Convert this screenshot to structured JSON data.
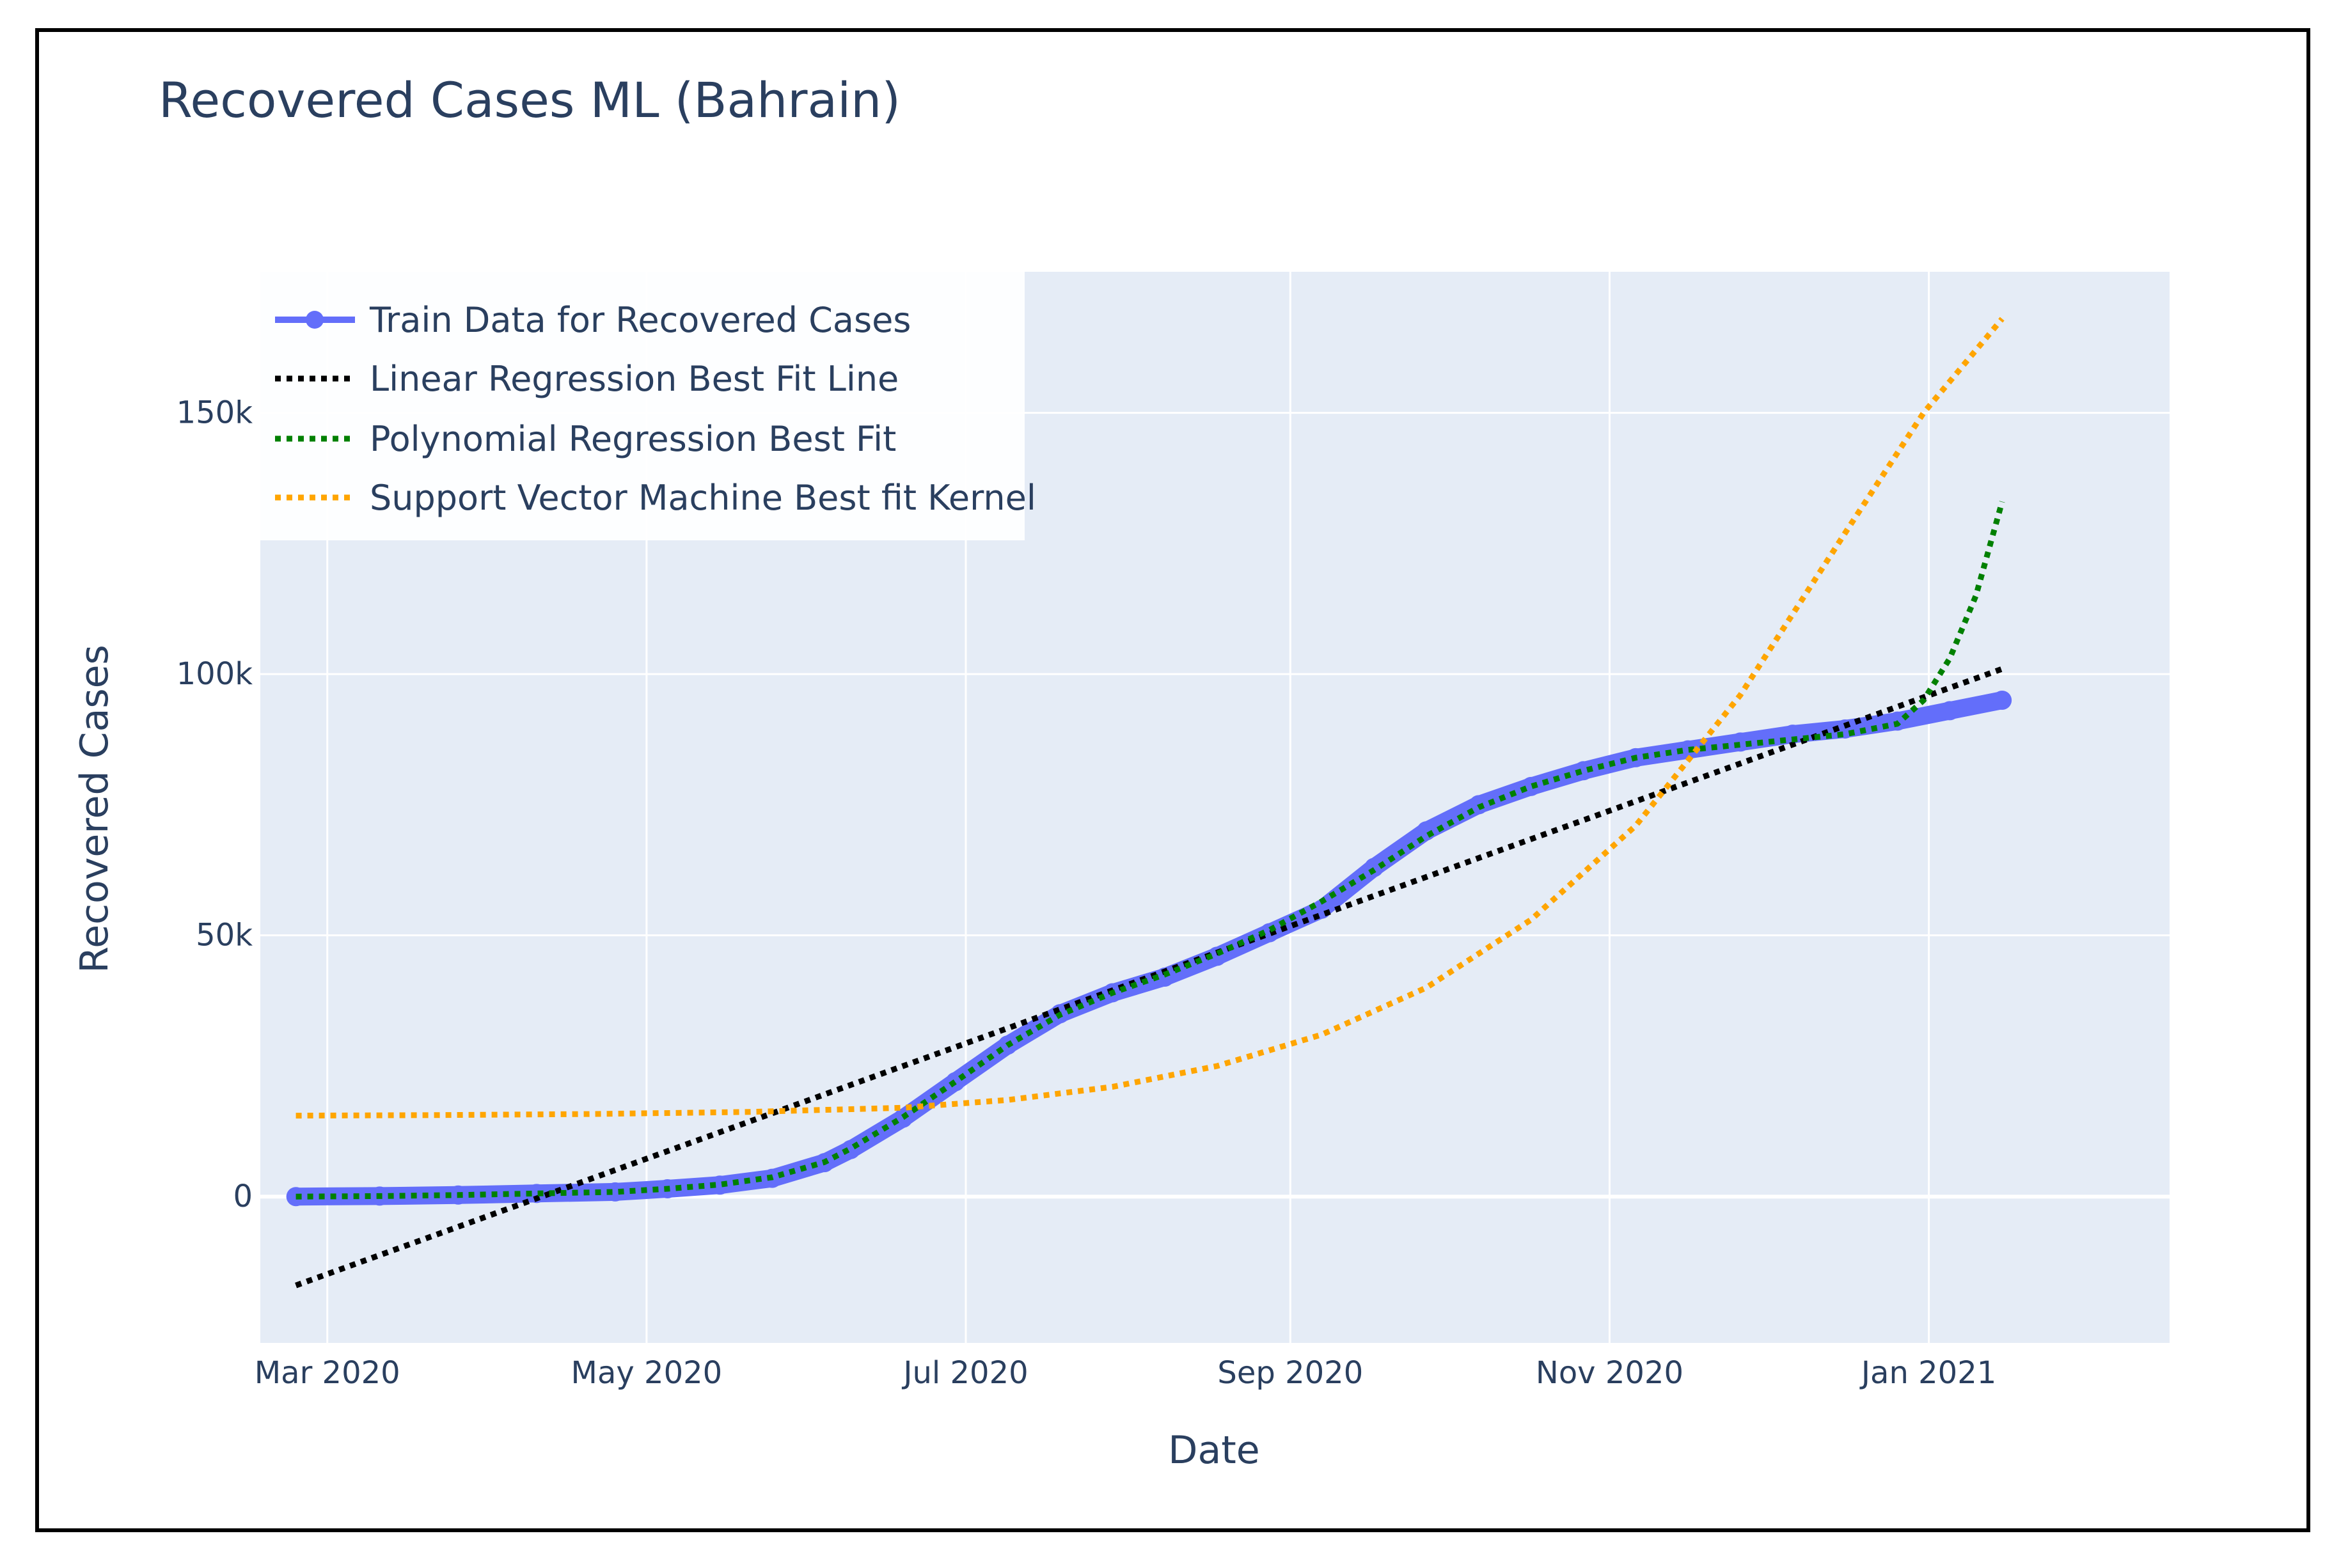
{
  "chart_data": {
    "type": "line",
    "title": "Recovered Cases ML (Bahrain)",
    "xlabel": "Date",
    "ylabel": "Recovered Cases",
    "x_unit": "days since 2020-03-01",
    "xlim": [
      -12.8,
      352
    ],
    "ylim": [
      -28000,
      177000
    ],
    "x_ticks": [
      {
        "label": "Mar 2020",
        "day": 0
      },
      {
        "label": "May 2020",
        "day": 61
      },
      {
        "label": "Jul 2020",
        "day": 122
      },
      {
        "label": "Sep 2020",
        "day": 184
      },
      {
        "label": "Nov 2020",
        "day": 245
      },
      {
        "label": "Jan 2021",
        "day": 306
      }
    ],
    "y_ticks": [
      {
        "label": "0",
        "value": 0
      },
      {
        "label": "50k",
        "value": 50000
      },
      {
        "label": "100k",
        "value": 100000
      },
      {
        "label": "150k",
        "value": 150000
      }
    ],
    "grid": true,
    "legend_position": "top-left",
    "series": [
      {
        "name": "Train Data for Recovered Cases",
        "color": "#636efa",
        "style": "line+markers",
        "x": [
          -6,
          10,
          25,
          40,
          55,
          65,
          75,
          85,
          95,
          100,
          110,
          120,
          130,
          140,
          150,
          160,
          170,
          180,
          190,
          200,
          210,
          220,
          230,
          240,
          250,
          260,
          270,
          280,
          290,
          300,
          310,
          320
        ],
        "y": [
          0,
          100,
          300,
          600,
          900,
          1500,
          2200,
          3500,
          6500,
          9000,
          15000,
          22000,
          29000,
          35000,
          39000,
          42000,
          46000,
          50500,
          55000,
          63000,
          70000,
          75000,
          78500,
          81500,
          84000,
          85500,
          87000,
          88500,
          89500,
          91000,
          93000,
          95000
        ]
      },
      {
        "name": "Linear Regression Best Fit Line",
        "color": "#000000",
        "style": "dot",
        "x": [
          -6,
          320
        ],
        "y": [
          -17000,
          101000
        ]
      },
      {
        "name": "Polynomial Regression Best Fit",
        "color": "#008000",
        "style": "dot",
        "x": [
          -6,
          10,
          25,
          40,
          55,
          65,
          75,
          85,
          95,
          100,
          110,
          120,
          130,
          140,
          150,
          160,
          170,
          180,
          190,
          200,
          210,
          220,
          230,
          240,
          250,
          260,
          270,
          280,
          290,
          300,
          305,
          310,
          315,
          320
        ],
        "y": [
          0,
          100,
          300,
          600,
          900,
          1500,
          2300,
          3700,
          6600,
          9200,
          15200,
          22000,
          29000,
          34800,
          39000,
          42500,
          46500,
          51000,
          56500,
          62500,
          69000,
          74500,
          78500,
          81500,
          84000,
          85500,
          86500,
          87500,
          88500,
          90500,
          95000,
          103000,
          115000,
          133000
        ]
      },
      {
        "name": "Support Vector Machine Best fit Kernel",
        "color": "#ffa500",
        "style": "dot",
        "x": [
          -6,
          20,
          50,
          80,
          110,
          130,
          150,
          170,
          190,
          210,
          230,
          250,
          270,
          290,
          305,
          320
        ],
        "y": [
          15500,
          15600,
          15800,
          16200,
          17000,
          18500,
          21000,
          25000,
          31000,
          40000,
          53000,
          71000,
          96000,
          127000,
          150000,
          168000
        ]
      }
    ]
  }
}
